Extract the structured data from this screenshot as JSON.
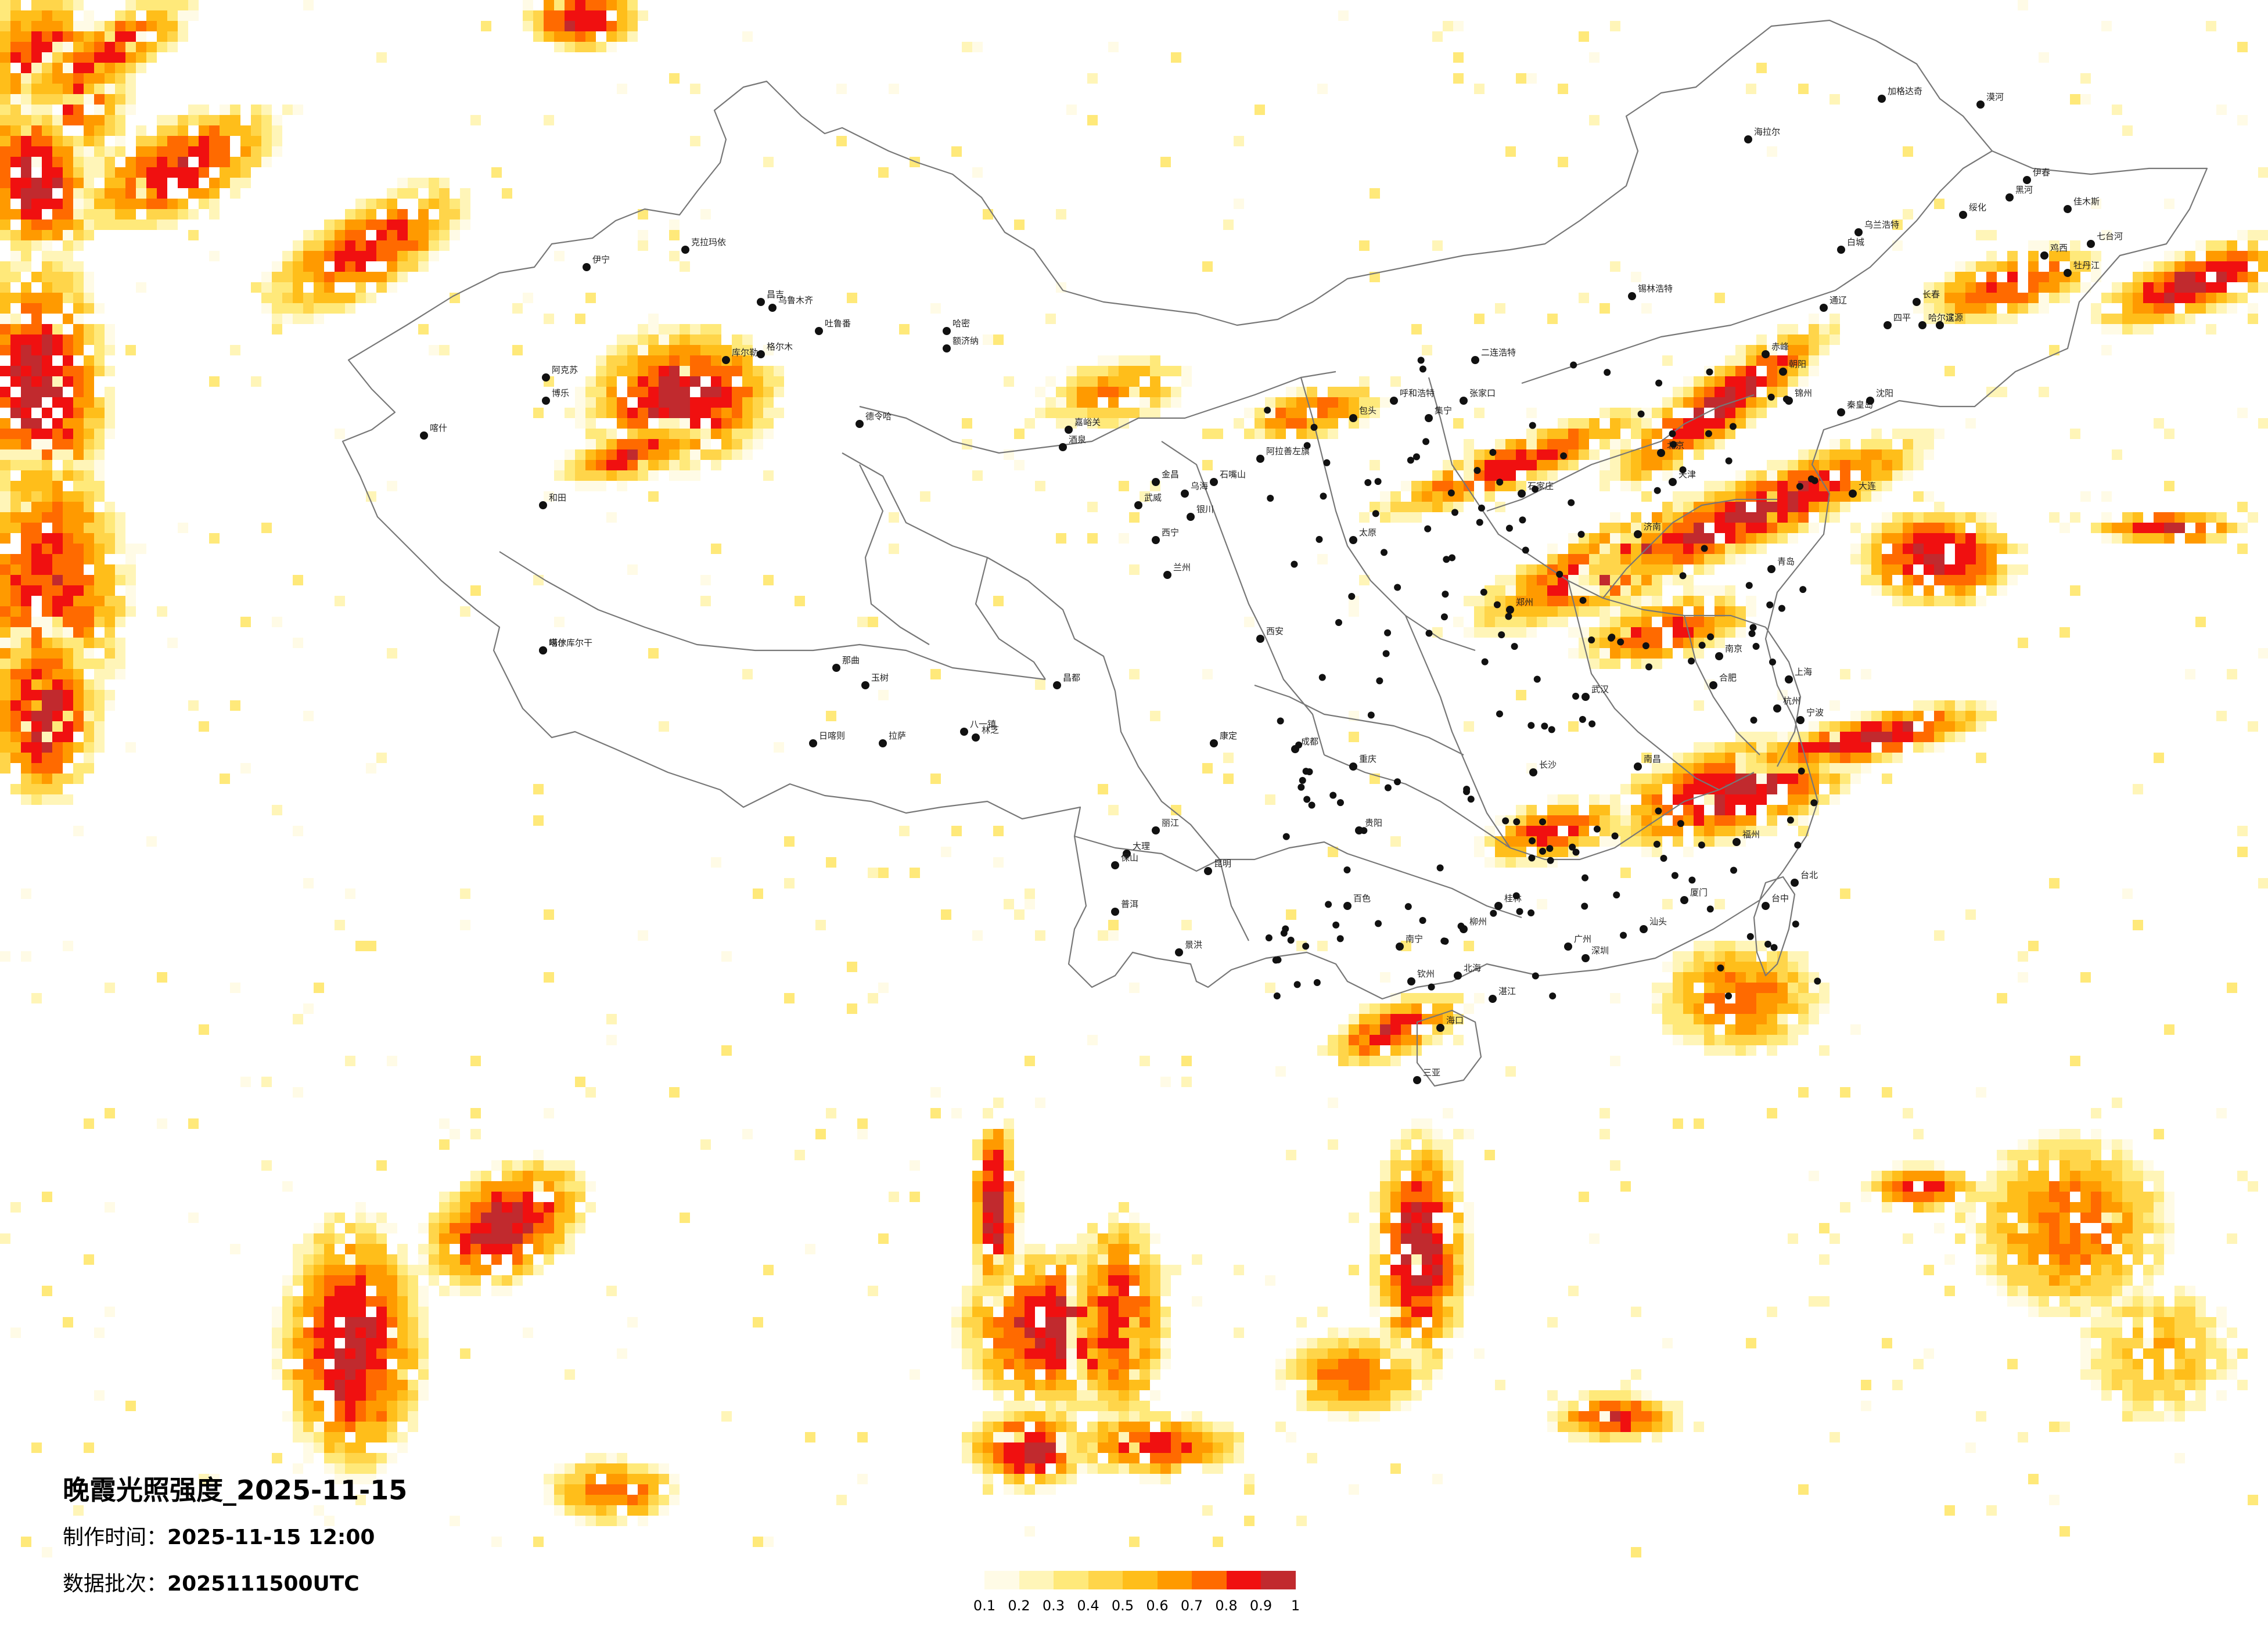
{
  "title": "晚霞光照强度_2025-11-15",
  "made_time_label": "制作时间：",
  "made_time": "2025-11-15 12:00",
  "batch_label": "数据批次：",
  "batch": "2025111500UTC",
  "legend": {
    "colors": [
      "#fffbe6",
      "#fff5b8",
      "#ffe97a",
      "#ffd54a",
      "#ffbe1a",
      "#ff9a00",
      "#ff6a00",
      "#f01010",
      "#c12a2e"
    ],
    "ticks": [
      "0.1",
      "0.2",
      "0.3",
      "0.4",
      "0.5",
      "0.6",
      "0.7",
      "0.8",
      "0.9",
      "1"
    ]
  },
  "cities": [
    {
      "name": "漠河"
    },
    {
      "name": "加格达奇"
    },
    {
      "name": "海拉尔"
    },
    {
      "name": "黑河"
    },
    {
      "name": "伊春"
    },
    {
      "name": "佳木斯"
    },
    {
      "name": "鸡西"
    },
    {
      "name": "七台河"
    },
    {
      "name": "牡丹江"
    },
    {
      "name": "绥化"
    },
    {
      "name": "乌兰浩特"
    },
    {
      "name": "白城"
    },
    {
      "name": "通辽"
    },
    {
      "name": "长春"
    },
    {
      "name": "四平"
    },
    {
      "name": "辽源"
    },
    {
      "name": "锡林浩特"
    },
    {
      "name": "赤峰"
    },
    {
      "name": "朝阳"
    },
    {
      "name": "锦州"
    },
    {
      "name": "秦皇岛"
    },
    {
      "name": "呼和浩特"
    },
    {
      "name": "包头"
    },
    {
      "name": "集宁"
    },
    {
      "name": "张家口"
    },
    {
      "name": "二连浩特"
    },
    {
      "name": "额济纳"
    },
    {
      "name": "嘉峪关"
    },
    {
      "name": "酒泉"
    },
    {
      "name": "金昌"
    },
    {
      "name": "武威"
    },
    {
      "name": "阿拉善左旗"
    },
    {
      "name": "银川"
    },
    {
      "name": "石嘴山"
    },
    {
      "name": "乌海"
    },
    {
      "name": "西宁"
    },
    {
      "name": "兰州"
    },
    {
      "name": "格尔木"
    },
    {
      "name": "德令哈"
    },
    {
      "name": "玉树"
    },
    {
      "name": "克拉玛依"
    },
    {
      "name": "昌吉"
    },
    {
      "name": "乌鲁木齐"
    },
    {
      "name": "吐鲁番"
    },
    {
      "name": "哈密"
    },
    {
      "name": "伊宁"
    },
    {
      "name": "博乐"
    },
    {
      "name": "阿克苏"
    },
    {
      "name": "库尔勒"
    },
    {
      "name": "喀什"
    },
    {
      "name": "和田"
    },
    {
      "name": "塔什库尔干"
    },
    {
      "name": "噶尔"
    },
    {
      "name": "日喀则"
    },
    {
      "name": "拉萨"
    },
    {
      "name": "林芝"
    },
    {
      "name": "那曲"
    },
    {
      "name": "昌都"
    },
    {
      "name": "八一镇"
    },
    {
      "name": "康定"
    },
    {
      "name": "成都"
    },
    {
      "name": "重庆"
    },
    {
      "name": "贵阳"
    },
    {
      "name": "昆明"
    },
    {
      "name": "大理"
    },
    {
      "name": "丽江"
    },
    {
      "name": "保山"
    },
    {
      "name": "普洱"
    },
    {
      "name": "景洪"
    },
    {
      "name": "南宁"
    },
    {
      "name": "柳州"
    },
    {
      "name": "桂林"
    },
    {
      "name": "百色"
    },
    {
      "name": "钦州"
    },
    {
      "name": "北海"
    },
    {
      "name": "湛江"
    },
    {
      "name": "海口"
    },
    {
      "name": "三亚"
    },
    {
      "name": "广州"
    },
    {
      "name": "深圳"
    },
    {
      "name": "汕头"
    },
    {
      "name": "福州"
    },
    {
      "name": "厦门"
    },
    {
      "name": "台中"
    },
    {
      "name": "台北"
    },
    {
      "name": "南昌"
    },
    {
      "name": "长沙"
    },
    {
      "name": "武汉"
    },
    {
      "name": "郑州"
    },
    {
      "name": "西安"
    },
    {
      "name": "太原"
    },
    {
      "name": "石家庄"
    },
    {
      "name": "济南"
    },
    {
      "name": "北京"
    },
    {
      "name": "天津"
    },
    {
      "name": "合肥"
    },
    {
      "name": "南京"
    },
    {
      "name": "上海"
    },
    {
      "name": "杭州"
    },
    {
      "name": "宁波"
    },
    {
      "name": "青岛"
    },
    {
      "name": "大连"
    },
    {
      "name": "沈阳"
    },
    {
      "name": "哈尔滨"
    }
  ]
}
